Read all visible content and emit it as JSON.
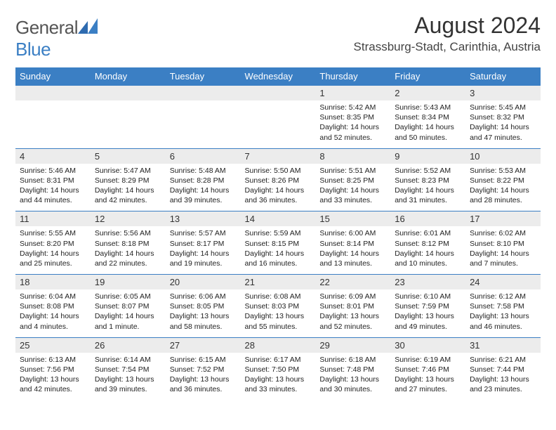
{
  "logo": {
    "textGen": "General",
    "textBlue": "Blue"
  },
  "title": "August 2024",
  "location": "Strassburg-Stadt, Carinthia, Austria",
  "colors": {
    "headerBg": "#3b7fc4",
    "dayRowBg": "#ececec",
    "ruleColor": "#3b7fc4"
  },
  "weekdays": [
    "Sunday",
    "Monday",
    "Tuesday",
    "Wednesday",
    "Thursday",
    "Friday",
    "Saturday"
  ],
  "weeks": [
    [
      null,
      null,
      null,
      null,
      {
        "n": "1",
        "sr": "Sunrise: 5:42 AM",
        "ss": "Sunset: 8:35 PM",
        "d1": "Daylight: 14 hours",
        "d2": "and 52 minutes."
      },
      {
        "n": "2",
        "sr": "Sunrise: 5:43 AM",
        "ss": "Sunset: 8:34 PM",
        "d1": "Daylight: 14 hours",
        "d2": "and 50 minutes."
      },
      {
        "n": "3",
        "sr": "Sunrise: 5:45 AM",
        "ss": "Sunset: 8:32 PM",
        "d1": "Daylight: 14 hours",
        "d2": "and 47 minutes."
      }
    ],
    [
      {
        "n": "4",
        "sr": "Sunrise: 5:46 AM",
        "ss": "Sunset: 8:31 PM",
        "d1": "Daylight: 14 hours",
        "d2": "and 44 minutes."
      },
      {
        "n": "5",
        "sr": "Sunrise: 5:47 AM",
        "ss": "Sunset: 8:29 PM",
        "d1": "Daylight: 14 hours",
        "d2": "and 42 minutes."
      },
      {
        "n": "6",
        "sr": "Sunrise: 5:48 AM",
        "ss": "Sunset: 8:28 PM",
        "d1": "Daylight: 14 hours",
        "d2": "and 39 minutes."
      },
      {
        "n": "7",
        "sr": "Sunrise: 5:50 AM",
        "ss": "Sunset: 8:26 PM",
        "d1": "Daylight: 14 hours",
        "d2": "and 36 minutes."
      },
      {
        "n": "8",
        "sr": "Sunrise: 5:51 AM",
        "ss": "Sunset: 8:25 PM",
        "d1": "Daylight: 14 hours",
        "d2": "and 33 minutes."
      },
      {
        "n": "9",
        "sr": "Sunrise: 5:52 AM",
        "ss": "Sunset: 8:23 PM",
        "d1": "Daylight: 14 hours",
        "d2": "and 31 minutes."
      },
      {
        "n": "10",
        "sr": "Sunrise: 5:53 AM",
        "ss": "Sunset: 8:22 PM",
        "d1": "Daylight: 14 hours",
        "d2": "and 28 minutes."
      }
    ],
    [
      {
        "n": "11",
        "sr": "Sunrise: 5:55 AM",
        "ss": "Sunset: 8:20 PM",
        "d1": "Daylight: 14 hours",
        "d2": "and 25 minutes."
      },
      {
        "n": "12",
        "sr": "Sunrise: 5:56 AM",
        "ss": "Sunset: 8:18 PM",
        "d1": "Daylight: 14 hours",
        "d2": "and 22 minutes."
      },
      {
        "n": "13",
        "sr": "Sunrise: 5:57 AM",
        "ss": "Sunset: 8:17 PM",
        "d1": "Daylight: 14 hours",
        "d2": "and 19 minutes."
      },
      {
        "n": "14",
        "sr": "Sunrise: 5:59 AM",
        "ss": "Sunset: 8:15 PM",
        "d1": "Daylight: 14 hours",
        "d2": "and 16 minutes."
      },
      {
        "n": "15",
        "sr": "Sunrise: 6:00 AM",
        "ss": "Sunset: 8:14 PM",
        "d1": "Daylight: 14 hours",
        "d2": "and 13 minutes."
      },
      {
        "n": "16",
        "sr": "Sunrise: 6:01 AM",
        "ss": "Sunset: 8:12 PM",
        "d1": "Daylight: 14 hours",
        "d2": "and 10 minutes."
      },
      {
        "n": "17",
        "sr": "Sunrise: 6:02 AM",
        "ss": "Sunset: 8:10 PM",
        "d1": "Daylight: 14 hours",
        "d2": "and 7 minutes."
      }
    ],
    [
      {
        "n": "18",
        "sr": "Sunrise: 6:04 AM",
        "ss": "Sunset: 8:08 PM",
        "d1": "Daylight: 14 hours",
        "d2": "and 4 minutes."
      },
      {
        "n": "19",
        "sr": "Sunrise: 6:05 AM",
        "ss": "Sunset: 8:07 PM",
        "d1": "Daylight: 14 hours",
        "d2": "and 1 minute."
      },
      {
        "n": "20",
        "sr": "Sunrise: 6:06 AM",
        "ss": "Sunset: 8:05 PM",
        "d1": "Daylight: 13 hours",
        "d2": "and 58 minutes."
      },
      {
        "n": "21",
        "sr": "Sunrise: 6:08 AM",
        "ss": "Sunset: 8:03 PM",
        "d1": "Daylight: 13 hours",
        "d2": "and 55 minutes."
      },
      {
        "n": "22",
        "sr": "Sunrise: 6:09 AM",
        "ss": "Sunset: 8:01 PM",
        "d1": "Daylight: 13 hours",
        "d2": "and 52 minutes."
      },
      {
        "n": "23",
        "sr": "Sunrise: 6:10 AM",
        "ss": "Sunset: 7:59 PM",
        "d1": "Daylight: 13 hours",
        "d2": "and 49 minutes."
      },
      {
        "n": "24",
        "sr": "Sunrise: 6:12 AM",
        "ss": "Sunset: 7:58 PM",
        "d1": "Daylight: 13 hours",
        "d2": "and 46 minutes."
      }
    ],
    [
      {
        "n": "25",
        "sr": "Sunrise: 6:13 AM",
        "ss": "Sunset: 7:56 PM",
        "d1": "Daylight: 13 hours",
        "d2": "and 42 minutes."
      },
      {
        "n": "26",
        "sr": "Sunrise: 6:14 AM",
        "ss": "Sunset: 7:54 PM",
        "d1": "Daylight: 13 hours",
        "d2": "and 39 minutes."
      },
      {
        "n": "27",
        "sr": "Sunrise: 6:15 AM",
        "ss": "Sunset: 7:52 PM",
        "d1": "Daylight: 13 hours",
        "d2": "and 36 minutes."
      },
      {
        "n": "28",
        "sr": "Sunrise: 6:17 AM",
        "ss": "Sunset: 7:50 PM",
        "d1": "Daylight: 13 hours",
        "d2": "and 33 minutes."
      },
      {
        "n": "29",
        "sr": "Sunrise: 6:18 AM",
        "ss": "Sunset: 7:48 PM",
        "d1": "Daylight: 13 hours",
        "d2": "and 30 minutes."
      },
      {
        "n": "30",
        "sr": "Sunrise: 6:19 AM",
        "ss": "Sunset: 7:46 PM",
        "d1": "Daylight: 13 hours",
        "d2": "and 27 minutes."
      },
      {
        "n": "31",
        "sr": "Sunrise: 6:21 AM",
        "ss": "Sunset: 7:44 PM",
        "d1": "Daylight: 13 hours",
        "d2": "and 23 minutes."
      }
    ]
  ]
}
